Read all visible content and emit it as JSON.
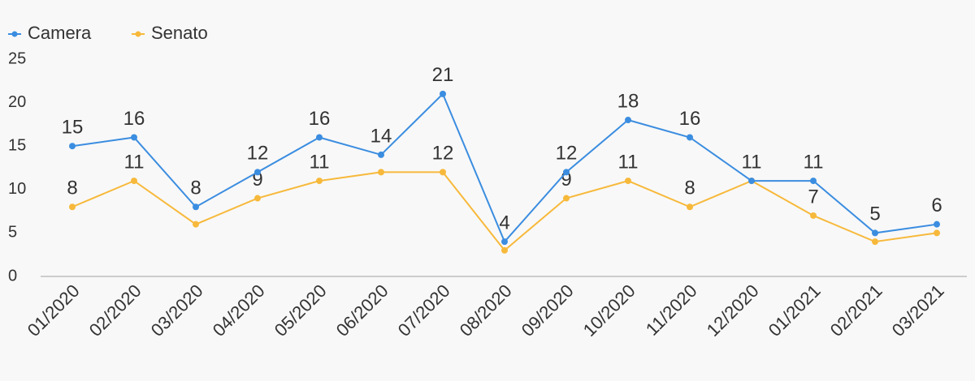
{
  "chart_data": {
    "type": "line",
    "categories": [
      "01/2020",
      "02/2020",
      "03/2020",
      "04/2020",
      "05/2020",
      "06/2020",
      "07/2020",
      "08/2020",
      "09/2020",
      "10/2020",
      "11/2020",
      "12/2020",
      "01/2021",
      "02/2021",
      "03/2021"
    ],
    "series": [
      {
        "name": "Camera",
        "color": "#3b8de0",
        "values": [
          15,
          16,
          8,
          12,
          16,
          14,
          21,
          4,
          12,
          18,
          16,
          11,
          11,
          5,
          6
        ]
      },
      {
        "name": "Senato",
        "color": "#f7b93b",
        "values": [
          8,
          11,
          6,
          9,
          11,
          12,
          12,
          3,
          9,
          11,
          8,
          11,
          7,
          4,
          5
        ],
        "value_labels": [
          "8",
          "11",
          null,
          "9",
          "11",
          null,
          "12",
          null,
          "9",
          "11",
          "8",
          null,
          "7",
          null,
          null
        ]
      }
    ],
    "ylim": [
      0,
      25
    ],
    "yticks": [
      0,
      5,
      10,
      15,
      20,
      25
    ],
    "grid": false,
    "legend": "top-left"
  }
}
